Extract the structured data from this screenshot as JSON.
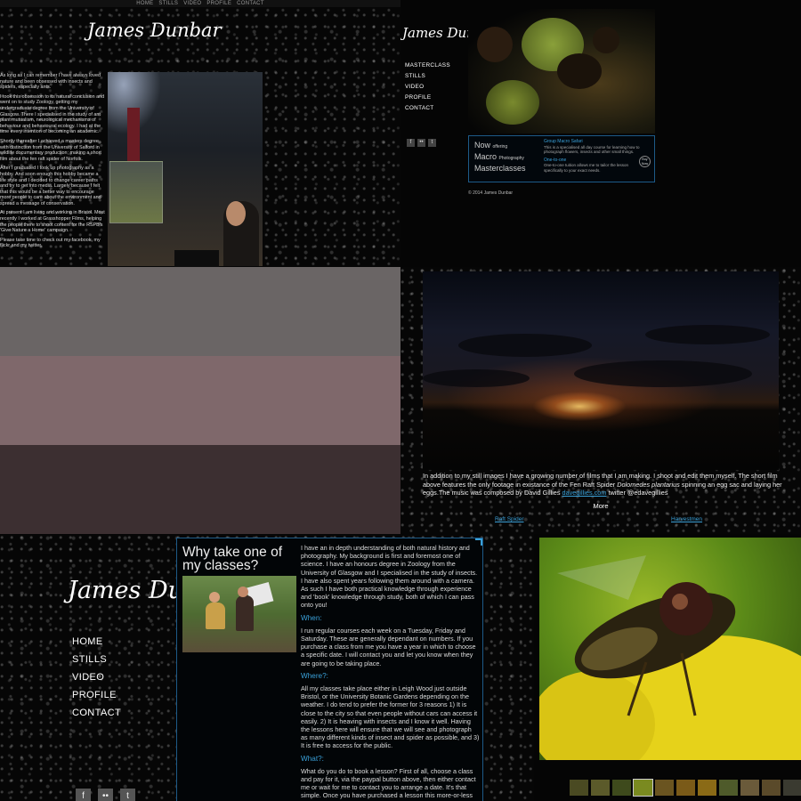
{
  "profile_page": {
    "top_nav": [
      "HOME",
      "STILLS",
      "VIDEO",
      "PROFILE",
      "CONTACT"
    ],
    "logo_text": "James Dunbar",
    "bio": [
      "As long as I can remember I have always loved nature and been obsessed with insects and spiders, especially ants.",
      "I took this obsession to its natural conclusion and went on to study Zoology, getting my undergraduate degree from the University of Glasgow. There I specialised in the study of ant plant mutualism, neurological mechanisms of behaviour and behavioural ecology. I had at the time every intention of becoming an academic.",
      "Shortly thereafter I achieved a masters degree with distinction from the University of Salford in wildlife documentary production; making a short film about the fen raft spider of Norfolk.",
      "After I graduated I took up photography as a hobby. And soon enough this hobby became a life style and I decided to change career paths and try to get into media. Largely because I felt that this would be a better way to encourage more people to care about the environment and spread a message of conservation.",
      "At present I am living and working in Bristol. Most recently I worked at Grasshopper Films, helping the people there to shoot content for the RSPB's 'Give Nature a Home' campaign.",
      "Please take time to check out my facebook, my flickr and my twitter."
    ]
  },
  "home_page": {
    "logo_text": "James Dunbar",
    "nav": [
      "MASTERCLASS",
      "STILLS",
      "VIDEO",
      "PROFILE",
      "CONTACT"
    ],
    "social": [
      "f",
      "••",
      "t"
    ],
    "promo": {
      "headline": [
        "Now",
        "offering",
        "Macro",
        "Photography",
        "Masterclasses"
      ],
      "item1_title": "Group Macro Safari",
      "item1_text": "This is a specialised all day course for learning how to photograph flowers, insects and other small things.",
      "item2_title": "One-to-one",
      "item2_text": "One-to-one tuition allows me to tailor the lesson specifically to your exact needs.",
      "buy": "Buy Now"
    },
    "copyright": "© 2014 James Dunbar"
  },
  "palette": [
    "#6a6565",
    "#7f686b",
    "#3c2f31"
  ],
  "video_page": {
    "description_1": "In addition to my still images I have a growing number of films that I am making. I shoot and edit them myself. The short film above features the only footage in existance of the Fen Raft Spider ",
    "species": "Dolomedes plantarius",
    "description_2": " spinning an egg sac and laying her eggs.The music was composed by David Gillies ",
    "composer_link": "davegillies.com",
    "description_3": " twitter @edavegillies",
    "more_label": "More",
    "links": [
      "Raft Spider",
      "Harvestmen"
    ]
  },
  "masterclass_page": {
    "logo_text": "James Dunbar",
    "nav": [
      "HOME",
      "STILLS",
      "VIDEO",
      "PROFILE",
      "CONTACT"
    ],
    "social": [
      "f",
      "••",
      "t"
    ],
    "heading": "Why take one of my classes?",
    "intro": "I have an in depth understanding of both natural history and photography. My background is first and foremost one of science. I have an honours degree in Zoology from the University of Glasgow and I specialised in the study of insects. I have also spent years following them around with a camera. As such I have both practical knowledge through experience and 'book' knowledge through study, both of which I can pass onto you!",
    "when_heading": "When:",
    "when_text": "I run regular courses each week on a Tuesday, Friday and Saturday. These are generally dependant on numbers. If you purchase a class from me you have a year in which to choose a specific date. I will contact you and let you know when they are going to be taking place.",
    "where_heading": "Where?:",
    "where_text": "All my classes take place either in Leigh Wood just outside Bristol, or the University Botanic Gardens depending on the weather. I do tend to prefer the former for 3 reasons 1) It is close to the city so that even people without cars can access it easily. 2) It is heaving with insects and I know it well. Having the lessons here will ensure that we will see and photograph as many different kinds of insect and spider as possible, and 3) It is free to access for the public.",
    "what_heading": "What?:",
    "what_text": "What do you do to book a lesson? First of all, choose a class and pay for it, via the paypal button above, then either contact me or wait for me to contact you to arrange a date. It's that simple. Once you have purchased a lesson this more-or-less up to you when you decide to use it!"
  },
  "stills_page": {
    "thumbnail_count": 11
  }
}
